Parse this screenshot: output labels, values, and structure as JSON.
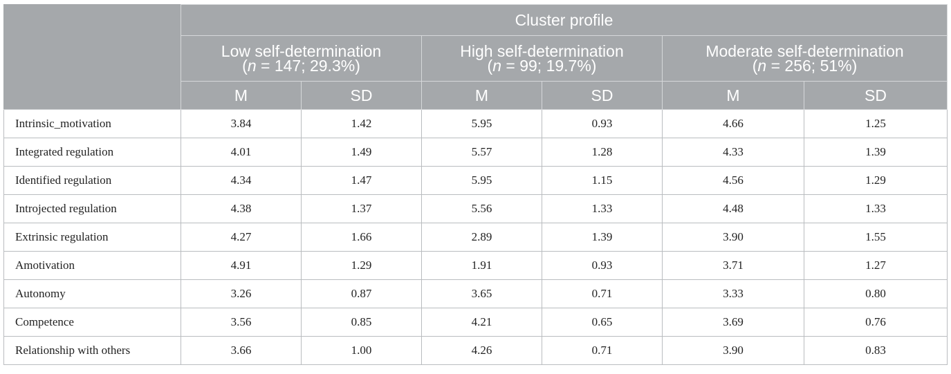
{
  "table": {
    "group_header": "Cluster profile",
    "clusters": [
      {
        "name": "Low self-determination",
        "n_label": "n",
        "n_rest": " = 147; 29.3%)"
      },
      {
        "name": "High self-determination",
        "n_label": "n",
        "n_rest": " = 99; 19.7%)"
      },
      {
        "name": "Moderate self-determination",
        "n_label": "n",
        "n_rest": " = 256; 51%)"
      }
    ],
    "stat_headers": [
      "M",
      "SD",
      "M",
      "SD",
      "M",
      "SD"
    ],
    "rows": [
      {
        "label": "Intrinsic_motivation",
        "values": [
          "3.84",
          "1.42",
          "5.95",
          "0.93",
          "4.66",
          "1.25"
        ]
      },
      {
        "label": "Integrated regulation",
        "values": [
          "4.01",
          "1.49",
          "5.57",
          "1.28",
          "4.33",
          "1.39"
        ]
      },
      {
        "label": "Identified regulation",
        "values": [
          "4.34",
          "1.47",
          "5.95",
          "1.15",
          "4.56",
          "1.29"
        ]
      },
      {
        "label": "Introjected regulation",
        "values": [
          "4.38",
          "1.37",
          "5.56",
          "1.33",
          "4.48",
          "1.33"
        ]
      },
      {
        "label": "Extrinsic regulation",
        "values": [
          "4.27",
          "1.66",
          "2.89",
          "1.39",
          "3.90",
          "1.55"
        ]
      },
      {
        "label": "Amotivation",
        "values": [
          "4.91",
          "1.29",
          "1.91",
          "0.93",
          "3.71",
          "1.27"
        ]
      },
      {
        "label": "Autonomy",
        "values": [
          "3.26",
          "0.87",
          "3.65",
          "0.71",
          "3.33",
          "0.80"
        ]
      },
      {
        "label": "Competence",
        "values": [
          "3.56",
          "0.85",
          "4.21",
          "0.65",
          "3.69",
          "0.76"
        ]
      },
      {
        "label": "Relationship with others",
        "values": [
          "3.66",
          "1.00",
          "4.26",
          "0.71",
          "3.90",
          "0.83"
        ]
      }
    ]
  },
  "colors": {
    "header_bg": "#a5a8ab",
    "header_text": "#ffffff",
    "grid_line": "#b9bcbf"
  }
}
